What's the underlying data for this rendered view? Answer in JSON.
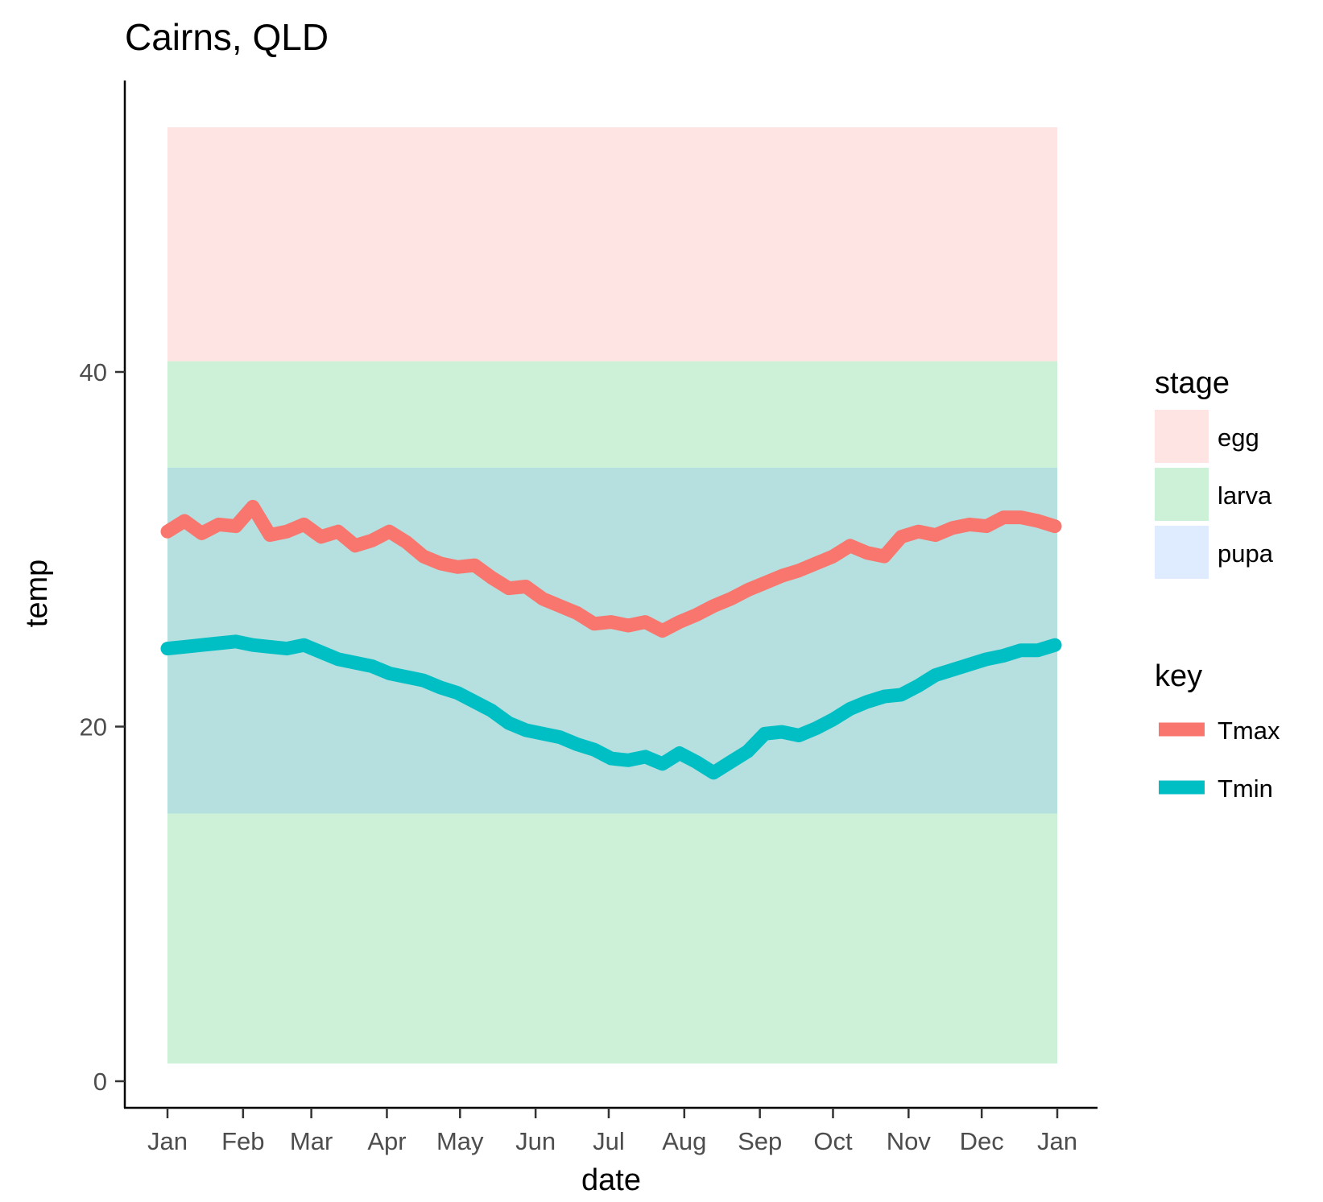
{
  "chart_data": {
    "type": "line",
    "title": "Cairns, QLD",
    "xlabel": "date",
    "ylabel": "temp",
    "x_ticks": [
      "Jan",
      "Feb",
      "Mar",
      "Apr",
      "May",
      "Jun",
      "Jul",
      "Aug",
      "Sep",
      "Oct",
      "Nov",
      "Dec",
      "Jan"
    ],
    "y_ticks": [
      0,
      20,
      40
    ],
    "xlim": [
      "2019-01-01",
      "2020-01-01"
    ],
    "ylim": [
      -1.2,
      56.4
    ],
    "grid": false,
    "bands": [
      {
        "stage": "egg",
        "ymin": 40.6,
        "ymax": 53.8
      },
      {
        "stage": "larva",
        "ymin": 1.0,
        "ymax": 40.6
      },
      {
        "stage": "pupa",
        "ymin": 15.1,
        "ymax": 34.6
      }
    ],
    "band_colors": {
      "egg": "#F8766D",
      "larva": "#00BA38",
      "pupa": "#619CFF"
    },
    "band_opacity": 0.2,
    "legends": [
      {
        "title": "stage",
        "type": "fill",
        "entries": [
          "egg",
          "larva",
          "pupa"
        ]
      },
      {
        "title": "key",
        "type": "line",
        "entries": [
          "Tmax",
          "Tmin"
        ]
      }
    ],
    "series": [
      {
        "name": "Tmax",
        "color": "#F8766D",
        "x": [
          "2019-01-01",
          "2019-01-08",
          "2019-01-15",
          "2019-01-22",
          "2019-01-29",
          "2019-02-05",
          "2019-02-12",
          "2019-02-19",
          "2019-02-26",
          "2019-03-05",
          "2019-03-12",
          "2019-03-19",
          "2019-03-26",
          "2019-04-02",
          "2019-04-09",
          "2019-04-16",
          "2019-04-23",
          "2019-04-30",
          "2019-05-07",
          "2019-05-14",
          "2019-05-21",
          "2019-05-28",
          "2019-06-04",
          "2019-06-11",
          "2019-06-18",
          "2019-06-25",
          "2019-07-02",
          "2019-07-09",
          "2019-07-16",
          "2019-07-23",
          "2019-07-30",
          "2019-08-06",
          "2019-08-13",
          "2019-08-20",
          "2019-08-27",
          "2019-09-03",
          "2019-09-10",
          "2019-09-17",
          "2019-09-24",
          "2019-10-01",
          "2019-10-08",
          "2019-10-15",
          "2019-10-22",
          "2019-10-29",
          "2019-11-05",
          "2019-11-12",
          "2019-11-19",
          "2019-11-26",
          "2019-12-03",
          "2019-12-10",
          "2019-12-17",
          "2019-12-24",
          "2019-12-31"
        ],
        "y": [
          31.0,
          31.6,
          30.9,
          31.4,
          31.3,
          32.4,
          30.8,
          31.0,
          31.4,
          30.7,
          31.0,
          30.2,
          30.5,
          31.0,
          30.4,
          29.6,
          29.2,
          29.0,
          29.1,
          28.4,
          27.8,
          27.9,
          27.2,
          26.8,
          26.4,
          25.8,
          25.9,
          25.7,
          25.9,
          25.4,
          25.9,
          26.3,
          26.8,
          27.2,
          27.7,
          28.1,
          28.5,
          28.8,
          29.2,
          29.6,
          30.2,
          29.8,
          29.6,
          30.7,
          31.0,
          30.8,
          31.2,
          31.4,
          31.3,
          31.8,
          31.8,
          31.6,
          31.3
        ]
      },
      {
        "name": "Tmin",
        "color": "#00BFC4",
        "x": [
          "2019-01-01",
          "2019-01-08",
          "2019-01-15",
          "2019-01-22",
          "2019-01-29",
          "2019-02-05",
          "2019-02-12",
          "2019-02-19",
          "2019-02-26",
          "2019-03-05",
          "2019-03-12",
          "2019-03-19",
          "2019-03-26",
          "2019-04-02",
          "2019-04-09",
          "2019-04-16",
          "2019-04-23",
          "2019-04-30",
          "2019-05-07",
          "2019-05-14",
          "2019-05-21",
          "2019-05-28",
          "2019-06-04",
          "2019-06-11",
          "2019-06-18",
          "2019-06-25",
          "2019-07-02",
          "2019-07-09",
          "2019-07-16",
          "2019-07-23",
          "2019-07-30",
          "2019-08-06",
          "2019-08-13",
          "2019-08-20",
          "2019-08-27",
          "2019-09-03",
          "2019-09-10",
          "2019-09-17",
          "2019-09-24",
          "2019-10-01",
          "2019-10-08",
          "2019-10-15",
          "2019-10-22",
          "2019-10-29",
          "2019-11-05",
          "2019-11-12",
          "2019-11-19",
          "2019-11-26",
          "2019-12-03",
          "2019-12-10",
          "2019-12-17",
          "2019-12-24",
          "2019-12-31"
        ],
        "y": [
          24.4,
          24.5,
          24.6,
          24.7,
          24.8,
          24.6,
          24.5,
          24.4,
          24.6,
          24.2,
          23.8,
          23.6,
          23.4,
          23.0,
          22.8,
          22.6,
          22.2,
          21.9,
          21.4,
          20.9,
          20.2,
          19.8,
          19.6,
          19.4,
          19.0,
          18.7,
          18.2,
          18.1,
          18.3,
          17.9,
          18.5,
          18.0,
          17.4,
          18.0,
          18.6,
          19.6,
          19.7,
          19.5,
          19.9,
          20.4,
          21.0,
          21.4,
          21.7,
          21.8,
          22.3,
          22.9,
          23.2,
          23.5,
          23.8,
          24.0,
          24.3,
          24.3,
          24.6
        ]
      }
    ]
  }
}
